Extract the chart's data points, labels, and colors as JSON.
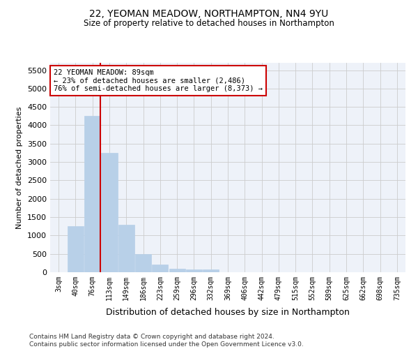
{
  "title_line1": "22, YEOMAN MEADOW, NORTHAMPTON, NN4 9YU",
  "title_line2": "Size of property relative to detached houses in Northampton",
  "xlabel": "Distribution of detached houses by size in Northampton",
  "ylabel": "Number of detached properties",
  "categories": [
    "3sqm",
    "40sqm",
    "76sqm",
    "113sqm",
    "149sqm",
    "186sqm",
    "223sqm",
    "259sqm",
    "296sqm",
    "332sqm",
    "369sqm",
    "406sqm",
    "442sqm",
    "479sqm",
    "515sqm",
    "552sqm",
    "589sqm",
    "625sqm",
    "662sqm",
    "698sqm",
    "735sqm"
  ],
  "values": [
    0,
    1250,
    4250,
    3250,
    1300,
    500,
    200,
    100,
    75,
    75,
    0,
    0,
    0,
    0,
    0,
    0,
    0,
    0,
    0,
    0,
    0
  ],
  "bar_color": "#b8d0e8",
  "bar_edgecolor": "#b8d0e8",
  "grid_color": "#cccccc",
  "annotation_box_text": "22 YEOMAN MEADOW: 89sqm\n← 23% of detached houses are smaller (2,486)\n76% of semi-detached houses are larger (8,373) →",
  "annotation_box_edgecolor": "#cc0000",
  "vline_color": "#cc0000",
  "vline_x_index": 2,
  "ylim": [
    0,
    5700
  ],
  "yticks": [
    0,
    500,
    1000,
    1500,
    2000,
    2500,
    3000,
    3500,
    4000,
    4500,
    5000,
    5500
  ],
  "footnote": "Contains HM Land Registry data © Crown copyright and database right 2024.\nContains public sector information licensed under the Open Government Licence v3.0.",
  "background_color": "#eef2f9"
}
